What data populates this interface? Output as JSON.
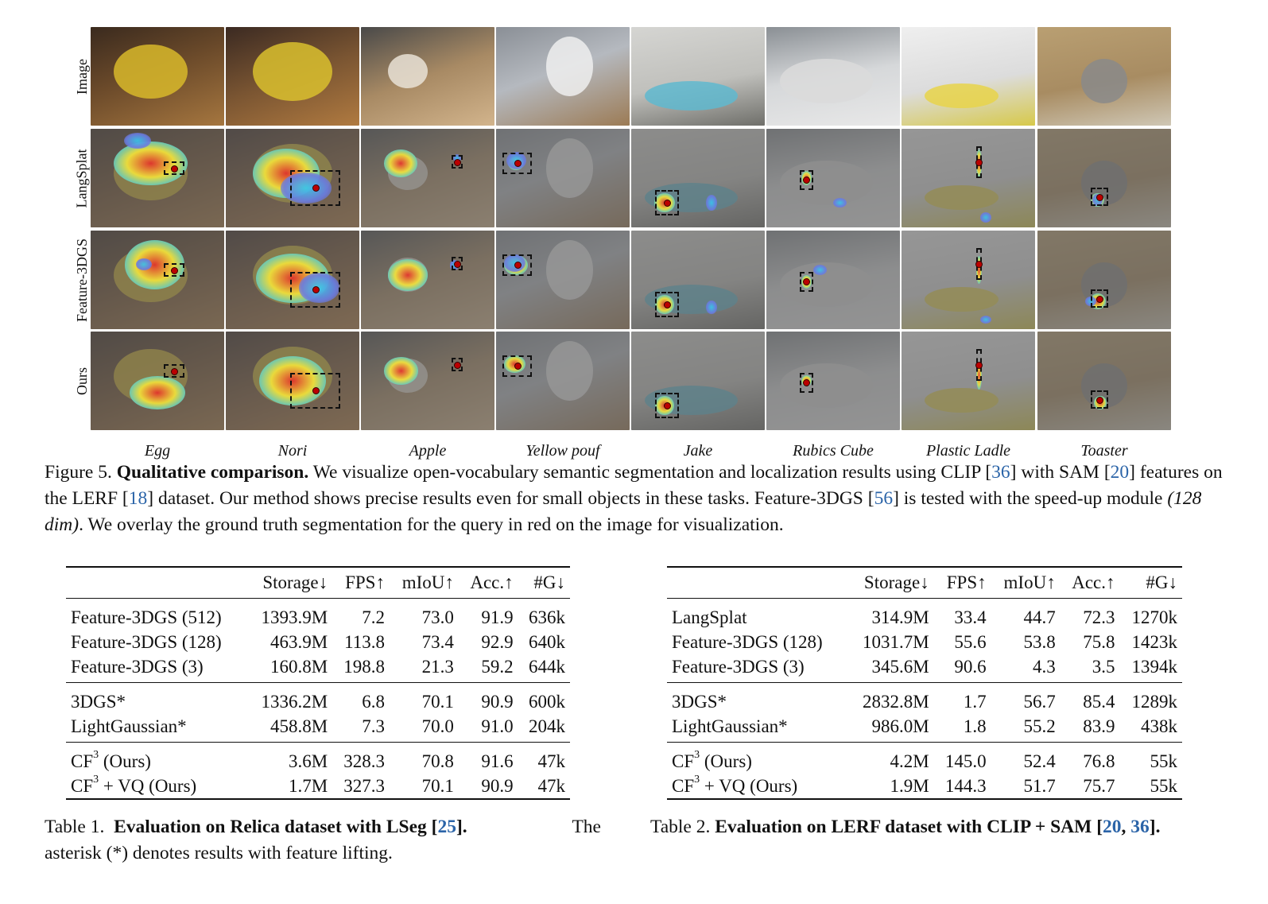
{
  "figure": {
    "row_labels": [
      "Image",
      "LangSplat",
      "Feature-3DGS",
      "Ours"
    ],
    "col_labels": [
      "Egg",
      "Nori",
      "Apple",
      "Yellow pouf",
      "Jake",
      "Rubics Cube",
      "Plastic Ladle",
      "Toaster"
    ],
    "caption": {
      "prefix": "Figure 5.",
      "title": "Qualitative comparison.",
      "t1": "We visualize open-vocabulary semantic segmentation and localization results using CLIP [",
      "r1": "36",
      "t2": "] with SAM [",
      "r2": "20",
      "t3": "] features on the LERF [",
      "r3": "18",
      "t4": "] dataset. Our method shows precise results even for small objects in these tasks. Feature-3DGS [",
      "r4": "56",
      "t5": "] is tested with the speed-up module ",
      "em": "(128 dim)",
      "t6": ". We overlay the ground truth segmentation for the query in red on the image for visualization."
    }
  },
  "table1": {
    "headers": [
      "",
      "Storage↓",
      "FPS↑",
      "mIoU↑",
      "Acc.↑",
      "#G↓"
    ],
    "g1": [
      [
        "Feature-3DGS (512)",
        "1393.9M",
        "7.2",
        "73.0",
        "91.9",
        "636k"
      ],
      [
        "Feature-3DGS (128)",
        "463.9M",
        "113.8",
        "73.4",
        "92.9",
        "640k"
      ],
      [
        "Feature-3DGS (3)",
        "160.8M",
        "198.8",
        "21.3",
        "59.2",
        "644k"
      ]
    ],
    "g2": [
      [
        "3DGS*",
        "1336.2M",
        "6.8",
        "70.1",
        "90.9",
        "600k"
      ],
      [
        "LightGaussian*",
        "458.8M",
        "7.3",
        "70.0",
        "91.0",
        "204k"
      ]
    ],
    "g3": [
      {
        "cf": "CF",
        "sup": "3",
        "rest": " (Ours)",
        "vals": [
          "3.6M",
          "328.3",
          "70.8",
          "91.6",
          "47k"
        ]
      },
      {
        "cf": "CF",
        "sup": "3",
        "rest": " + VQ (Ours)",
        "vals": [
          "1.7M",
          "327.3",
          "70.1",
          "90.9",
          "47k"
        ]
      }
    ],
    "caption": {
      "prefix": "Table 1.",
      "title": "Evaluation on Relica dataset with LSeg [",
      "ref": "25",
      "title_end": "].",
      "rest1": "The",
      "rest2": "asterisk (*) denotes results with feature lifting."
    }
  },
  "table2": {
    "headers": [
      "",
      "Storage↓",
      "FPS↑",
      "mIoU↑",
      "Acc.↑",
      "#G↓"
    ],
    "g1": [
      [
        "LangSplat",
        "314.9M",
        "33.4",
        "44.7",
        "72.3",
        "1270k"
      ],
      [
        "Feature-3DGS (128)",
        "1031.7M",
        "55.6",
        "53.8",
        "75.8",
        "1423k"
      ],
      [
        "Feature-3DGS (3)",
        "345.6M",
        "90.6",
        "4.3",
        "3.5",
        "1394k"
      ]
    ],
    "g2": [
      [
        "3DGS*",
        "2832.8M",
        "1.7",
        "56.7",
        "85.4",
        "1289k"
      ],
      [
        "LightGaussian*",
        "986.0M",
        "1.8",
        "55.2",
        "83.9",
        "438k"
      ]
    ],
    "g3": [
      {
        "cf": "CF",
        "sup": "3",
        "rest": " (Ours)",
        "vals": [
          "4.2M",
          "145.0",
          "52.4",
          "76.8",
          "55k"
        ]
      },
      {
        "cf": "CF",
        "sup": "3",
        "rest": " + VQ (Ours)",
        "vals": [
          "1.9M",
          "144.3",
          "51.7",
          "75.7",
          "55k"
        ]
      }
    ],
    "caption": {
      "prefix": "Table 2.",
      "title": "Evaluation on LERF dataset with CLIP + SAM [",
      "ref1": "20",
      "sep": ", ",
      "ref2": "36",
      "title_end": "]."
    }
  },
  "colors": {
    "reference_link": "#2b64a8",
    "heat_high": "#e4312b",
    "heat_mid": "#f2e23a",
    "heat_low": "#39c6e8",
    "ground_truth": "#b00000"
  }
}
